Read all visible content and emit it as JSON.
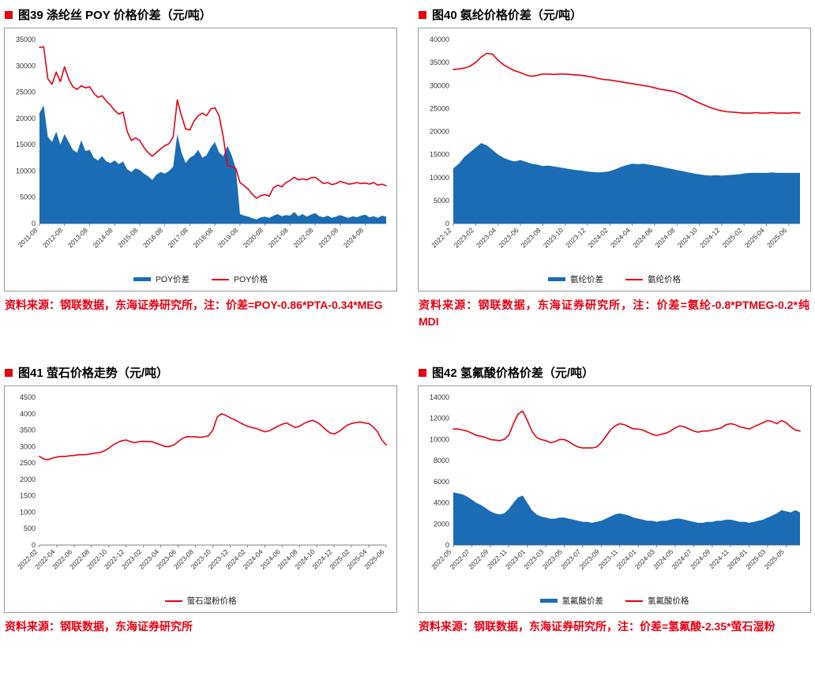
{
  "page": {
    "background": "#ffffff"
  },
  "colors": {
    "accent_red": "#E60012",
    "area_blue": "#1B6CB5",
    "axis_gray": "#808080",
    "tick_text": "#333333"
  },
  "chart_data": [
    {
      "figure_no": "图39",
      "title": "图39  涤纶丝 POY 价格价差（元/吨）",
      "caption": "资料来源：钢联数据，东海证券研究所，注：价差=POY-0.86*PTA-0.34*MEG",
      "type": "area+line",
      "ylim": [
        0,
        35000
      ],
      "ytick_step": 5000,
      "grid": false,
      "legend_position": "bottom",
      "xticks": [
        "2011-08",
        "2012-08",
        "2013-08",
        "2014-08",
        "2015-08",
        "2016-08",
        "2017-08",
        "2018-08",
        "2019-08",
        "2020-08",
        "2021-08",
        "2022-08",
        "2023-08",
        "2024-08"
      ],
      "xtick_idx": [
        0,
        6,
        12,
        18,
        24,
        30,
        36,
        42,
        48,
        54,
        60,
        66,
        72,
        78
      ],
      "series": [
        {
          "name": "POY价差",
          "type": "area",
          "color": "#1B6CB5",
          "values": [
            21000,
            22500,
            16500,
            15500,
            17500,
            15000,
            17000,
            15500,
            14000,
            13500,
            15800,
            13800,
            14000,
            12500,
            12000,
            12800,
            11800,
            11500,
            12000,
            11300,
            11800,
            10300,
            9800,
            10500,
            10200,
            9500,
            9000,
            8300,
            9300,
            9800,
            9500,
            10000,
            10800,
            17000,
            13500,
            11500,
            12500,
            13000,
            14000,
            12500,
            13000,
            14500,
            15500,
            13500,
            12800,
            14800,
            13000,
            10500,
            1800,
            1500,
            1300,
            1000,
            800,
            1200,
            1300,
            1100,
            1500,
            1800,
            1400,
            1600,
            1500,
            2200,
            1400,
            1800,
            1300,
            1700,
            2000,
            1400,
            1200,
            1500,
            1100,
            1300,
            1600,
            1300,
            1100,
            1400,
            1200,
            1500,
            1700,
            1200,
            1400,
            1100,
            1500,
            1300
          ]
        },
        {
          "name": "POY价格",
          "type": "line",
          "color": "#E60012",
          "values": [
            33500,
            33600,
            27500,
            26500,
            28800,
            27000,
            29800,
            27500,
            26000,
            25500,
            26200,
            25800,
            26000,
            24800,
            24000,
            24300,
            23300,
            22500,
            21500,
            20800,
            21200,
            17500,
            15800,
            16300,
            15800,
            14500,
            13500,
            12800,
            13500,
            14200,
            14800,
            15200,
            16500,
            23500,
            20500,
            18000,
            17800,
            19500,
            20500,
            21000,
            20500,
            21800,
            22000,
            20500,
            16500,
            11000,
            10800,
            10500,
            7800,
            7200,
            6500,
            5500,
            4800,
            5300,
            5500,
            5200,
            6800,
            7300,
            7000,
            7800,
            8200,
            8800,
            8300,
            8500,
            8300,
            8700,
            8800,
            8200,
            7600,
            7800,
            7400,
            7600,
            8000,
            7800,
            7500,
            7600,
            7800,
            7600,
            7700,
            7500,
            7800,
            7300,
            7500,
            7200
          ]
        }
      ]
    },
    {
      "figure_no": "图40",
      "title": "图40  氨纶价格价差（元/吨）",
      "caption": "资料来源：钢联数据，东海证券研究所，注：价差=氨纶-0.8*PTMEG-0.2*纯 MDI",
      "type": "area+line",
      "ylim": [
        0,
        40000
      ],
      "ytick_step": 5000,
      "grid": false,
      "legend_position": "bottom",
      "xticks": [
        "2022-12",
        "2023-02",
        "2023-04",
        "2023-06",
        "2023-08",
        "2023-10",
        "2023-12",
        "2024-02",
        "2024-04",
        "2024-06",
        "2024-08",
        "2024-10",
        "2024-12",
        "2025-02",
        "2025-04",
        "2025-06"
      ],
      "xtick_idx": [
        0,
        4,
        8,
        12,
        16,
        20,
        24,
        28,
        32,
        36,
        40,
        44,
        48,
        52,
        56,
        60
      ],
      "series": [
        {
          "name": "氨纶价差",
          "type": "area",
          "color": "#1B6CB5",
          "values": [
            12000,
            13000,
            14500,
            15500,
            16500,
            17500,
            17000,
            16000,
            15000,
            14300,
            13800,
            13500,
            13800,
            13400,
            13000,
            12800,
            12500,
            12600,
            12400,
            12200,
            12000,
            11800,
            11600,
            11500,
            11300,
            11200,
            11100,
            11200,
            11400,
            11800,
            12300,
            12700,
            13000,
            12900,
            13000,
            12800,
            12600,
            12400,
            12100,
            11900,
            11600,
            11400,
            11100,
            10900,
            10700,
            10500,
            10400,
            10500,
            10400,
            10500,
            10600,
            10700,
            10900,
            11000,
            11000,
            11000,
            11000,
            11100,
            11000,
            11000,
            11000,
            11000,
            11000
          ]
        },
        {
          "name": "氨纶价格",
          "type": "line",
          "color": "#E60012",
          "values": [
            33500,
            33600,
            33800,
            34200,
            35000,
            36200,
            37000,
            36800,
            35500,
            34500,
            33800,
            33200,
            32800,
            32300,
            32000,
            32200,
            32500,
            32500,
            32400,
            32500,
            32500,
            32400,
            32300,
            32200,
            32000,
            31800,
            31500,
            31300,
            31200,
            31000,
            30800,
            30600,
            30400,
            30200,
            30000,
            29800,
            29500,
            29200,
            29000,
            28800,
            28500,
            28000,
            27400,
            26800,
            26200,
            25700,
            25200,
            24800,
            24500,
            24300,
            24200,
            24100,
            24000,
            24000,
            24100,
            24000,
            24000,
            24100,
            24000,
            24000,
            24000,
            24100,
            24000
          ]
        }
      ]
    },
    {
      "figure_no": "图41",
      "title": "图41  萤石价格走势（元/吨）",
      "caption": "资料来源：钢联数据，东海证券研究所",
      "type": "line",
      "ylim": [
        0,
        4500
      ],
      "ytick_step": 500,
      "grid": false,
      "legend_position": "bottom",
      "xticks": [
        "2022-02",
        "2022-04",
        "2022-06",
        "2022-08",
        "2022-10",
        "2022-12",
        "2023-02",
        "2023-04",
        "2023-06",
        "2023-08",
        "2023-10",
        "2023-12",
        "2024-02",
        "2024-04",
        "2024-06",
        "2024-08",
        "2024-10",
        "2024-12",
        "2025-02",
        "2025-04",
        "2025-06"
      ],
      "xtick_idx": [
        0,
        4,
        8,
        12,
        16,
        20,
        24,
        28,
        32,
        36,
        40,
        44,
        48,
        52,
        56,
        60,
        64,
        68,
        72,
        76,
        80
      ],
      "series": [
        {
          "name": "萤石湿粉价格",
          "type": "line",
          "color": "#E60012",
          "values": [
            2700,
            2620,
            2600,
            2650,
            2680,
            2700,
            2700,
            2720,
            2730,
            2750,
            2750,
            2760,
            2780,
            2800,
            2820,
            2870,
            2950,
            3050,
            3120,
            3180,
            3200,
            3150,
            3120,
            3150,
            3160,
            3150,
            3150,
            3100,
            3050,
            3000,
            3000,
            3050,
            3150,
            3250,
            3300,
            3300,
            3300,
            3280,
            3300,
            3330,
            3500,
            3900,
            4000,
            3950,
            3880,
            3820,
            3750,
            3680,
            3620,
            3580,
            3550,
            3500,
            3450,
            3480,
            3550,
            3620,
            3680,
            3720,
            3650,
            3580,
            3620,
            3700,
            3760,
            3800,
            3740,
            3650,
            3520,
            3420,
            3380,
            3450,
            3550,
            3650,
            3700,
            3730,
            3750,
            3720,
            3700,
            3600,
            3450,
            3200,
            3050
          ]
        }
      ]
    },
    {
      "figure_no": "图42",
      "title": "图42  氢氟酸价格价差（元/吨）",
      "caption": "资料来源：钢联数据，东海证券研究所，注：价差=氢氟酸-2.35*萤石湿粉",
      "type": "area+line",
      "ylim": [
        0,
        14000
      ],
      "ytick_step": 2000,
      "grid": false,
      "legend_position": "bottom",
      "xticks": [
        "2022-05",
        "2022-07",
        "2022-09",
        "2022-11",
        "2023-01",
        "2023-03",
        "2023-05",
        "2023-07",
        "2023-09",
        "2023-11",
        "2024-01",
        "2024-03",
        "2024-05",
        "2024-07",
        "2024-09",
        "2024-11",
        "2025-01",
        "2025-03",
        "2025-05"
      ],
      "xtick_idx": [
        0,
        4,
        8,
        12,
        16,
        20,
        24,
        28,
        32,
        36,
        40,
        44,
        48,
        52,
        56,
        60,
        64,
        68,
        72
      ],
      "series": [
        {
          "name": "氢氟酸价差",
          "type": "area",
          "color": "#1B6CB5",
          "values": [
            5000,
            4900,
            4800,
            4600,
            4300,
            4000,
            3800,
            3500,
            3200,
            3000,
            2900,
            3000,
            3400,
            4000,
            4500,
            4700,
            4000,
            3300,
            2900,
            2700,
            2600,
            2500,
            2500,
            2600,
            2600,
            2500,
            2400,
            2300,
            2200,
            2200,
            2100,
            2200,
            2300,
            2500,
            2700,
            2900,
            3000,
            2900,
            2800,
            2600,
            2500,
            2400,
            2300,
            2300,
            2200,
            2300,
            2300,
            2400,
            2500,
            2500,
            2400,
            2300,
            2200,
            2100,
            2100,
            2200,
            2200,
            2300,
            2300,
            2400,
            2400,
            2300,
            2200,
            2200,
            2100,
            2200,
            2300,
            2400,
            2600,
            2800,
            3000,
            3300,
            3200,
            3100,
            3300,
            3100
          ]
        },
        {
          "name": "氢氟酸价格",
          "type": "line",
          "color": "#E60012",
          "values": [
            11000,
            11000,
            10900,
            10800,
            10600,
            10400,
            10300,
            10200,
            10000,
            9950,
            9900,
            10000,
            10400,
            11500,
            12400,
            12700,
            11800,
            10800,
            10200,
            10000,
            9900,
            9700,
            9800,
            10000,
            10000,
            9800,
            9500,
            9300,
            9200,
            9200,
            9200,
            9300,
            9700,
            10300,
            10900,
            11300,
            11500,
            11400,
            11200,
            11000,
            11000,
            10900,
            10700,
            10500,
            10400,
            10500,
            10600,
            10800,
            11100,
            11300,
            11200,
            11000,
            10800,
            10700,
            10800,
            10800,
            10900,
            11000,
            11100,
            11400,
            11500,
            11400,
            11200,
            11100,
            11000,
            11200,
            11400,
            11600,
            11800,
            11700,
            11500,
            11800,
            11600,
            11200,
            10900,
            10800
          ]
        }
      ]
    }
  ]
}
